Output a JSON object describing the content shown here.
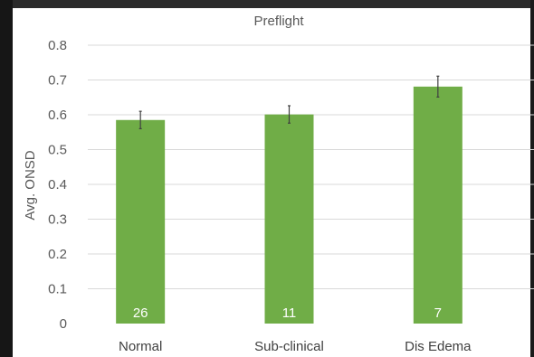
{
  "chart_data": {
    "type": "bar",
    "title": "Preflight",
    "xlabel": "",
    "ylabel": "Avg. ONSD",
    "ylim": [
      0,
      0.8
    ],
    "yticks": [
      "0",
      "0.1",
      "0.2",
      "0.3",
      "0.4",
      "0.5",
      "0.6",
      "0.7",
      "0.8"
    ],
    "grid": true,
    "categories": [
      "Normal",
      "Sub-clinical",
      "Dis Edema"
    ],
    "values": [
      0.585,
      0.601,
      0.681
    ],
    "error": [
      0.025,
      0.025,
      0.03
    ],
    "data_labels": [
      "26",
      "11",
      "7"
    ],
    "bar_color": "#70ad47"
  }
}
